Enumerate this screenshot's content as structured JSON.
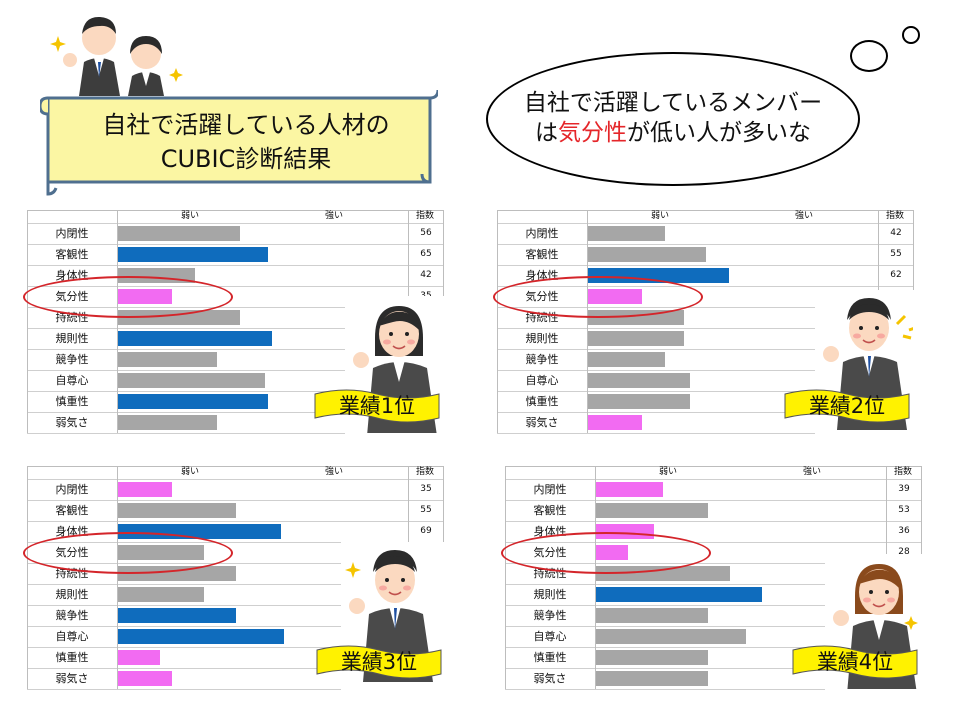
{
  "scroll_banner": {
    "line1": "自社で活躍している人材の",
    "line2": "CUBIC診断結果"
  },
  "thought_bubble": {
    "line1": "自社で活躍しているメンバー",
    "line2_pre": "は",
    "line2_highlight": "気分性",
    "line2_post": "が低い人が多いな"
  },
  "colors": {
    "gray": "#a6a6a6",
    "blue": "#0f6cbd",
    "pink": "#f26bf2",
    "highlight_red": "#e5262a",
    "scroll_fill": "#fbf6a3",
    "scroll_border": "#4f6f8f"
  },
  "chart_data": [
    {
      "type": "bar",
      "header_weak": "弱い",
      "header_strong": "強い",
      "header_index": "指数",
      "categories": [
        "内閉性",
        "客観性",
        "身体性",
        "気分性",
        "持続性",
        "規則性",
        "競争性",
        "自尊心",
        "慎重性",
        "弱気さ"
      ],
      "values": [
        56,
        65,
        42,
        35,
        56,
        66,
        49,
        64,
        65,
        49
      ],
      "colors": [
        "gray",
        "blue",
        "gray",
        "pink",
        "gray",
        "blue",
        "gray",
        "gray",
        "blue",
        "gray"
      ],
      "index_labels": [
        "56",
        "65",
        "42",
        "35"
      ],
      "highlight": "気分性",
      "badge": "業績1位"
    },
    {
      "type": "bar",
      "header_weak": "弱い",
      "header_strong": "強い",
      "header_index": "指数",
      "categories": [
        "内閉性",
        "客観性",
        "身体性",
        "気分性",
        "持続性",
        "規則性",
        "競争性",
        "自尊心",
        "慎重性",
        "弱気さ"
      ],
      "values": [
        42,
        55,
        62,
        35,
        48,
        48,
        42,
        50,
        50,
        35
      ],
      "colors": [
        "gray",
        "gray",
        "blue",
        "pink",
        "gray",
        "gray",
        "gray",
        "gray",
        "gray",
        "pink"
      ],
      "index_labels": [
        "42",
        "55",
        "62"
      ],
      "highlight": "気分性",
      "badge": "業績2位"
    },
    {
      "type": "bar",
      "header_weak": "弱い",
      "header_strong": "強い",
      "header_index": "指数",
      "categories": [
        "内閉性",
        "客観性",
        "身体性",
        "気分性",
        "持続性",
        "規則性",
        "競争性",
        "自尊心",
        "慎重性",
        "弱気さ"
      ],
      "values": [
        35,
        55,
        69,
        45,
        55,
        45,
        55,
        70,
        31,
        35
      ],
      "colors": [
        "pink",
        "gray",
        "blue",
        "gray",
        "gray",
        "gray",
        "blue",
        "blue",
        "pink",
        "pink"
      ],
      "index_labels": [
        "35",
        "55",
        "69"
      ],
      "highlight": "気分性",
      "badge": "業績3位"
    },
    {
      "type": "bar",
      "header_weak": "弱い",
      "header_strong": "強い",
      "header_index": "指数",
      "categories": [
        "内閉性",
        "客観性",
        "身体性",
        "気分性",
        "持続性",
        "規則性",
        "競争性",
        "自尊心",
        "慎重性",
        "弱気さ"
      ],
      "values": [
        39,
        53,
        36,
        28,
        60,
        70,
        53,
        65,
        53,
        53
      ],
      "colors": [
        "pink",
        "gray",
        "pink",
        "pink",
        "gray",
        "blue",
        "gray",
        "gray",
        "gray",
        "gray"
      ],
      "index_labels": [
        "39",
        "53",
        "36",
        "28"
      ],
      "highlight": "気分性",
      "badge": "業績4位"
    }
  ]
}
